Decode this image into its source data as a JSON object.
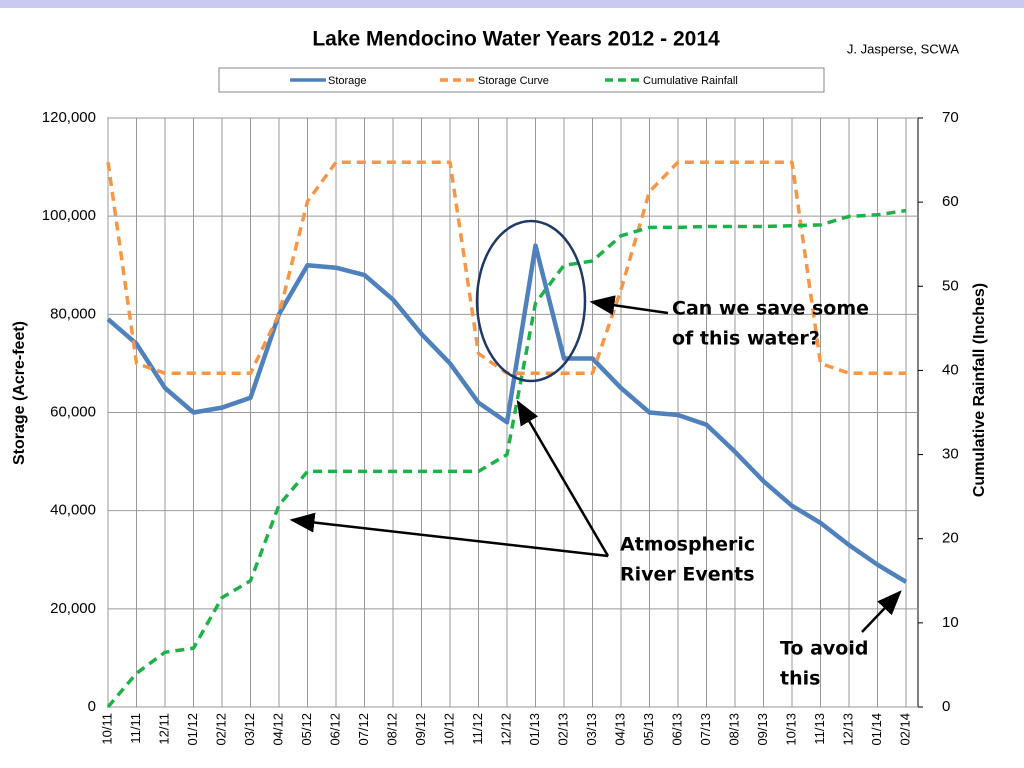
{
  "chart_data": {
    "type": "line",
    "title": "Lake Mendocino Water Years 2012 - 2014",
    "credit": "J. Jasperse, SCWA",
    "y_label": "Storage (Acre-feet)",
    "y2_label": "Cumulative Rainfall (Inches)",
    "categories": [
      "10/11",
      "11/11",
      "12/11",
      "01/12",
      "02/12",
      "03/12",
      "04/12",
      "05/12",
      "06/12",
      "07/12",
      "08/12",
      "09/12",
      "10/12",
      "11/12",
      "12/12",
      "01/13",
      "02/13",
      "03/13",
      "04/13",
      "05/13",
      "06/13",
      "07/13",
      "08/13",
      "09/13",
      "10/13",
      "11/13",
      "12/13",
      "01/14",
      "02/14"
    ],
    "series": [
      {
        "name": "Storage",
        "color": "#4f81bd",
        "dashed": false,
        "values": [
          79000,
          74000,
          65000,
          60000,
          61000,
          63000,
          80000,
          90000,
          89500,
          88000,
          83000,
          76000,
          70000,
          62000,
          58000,
          94000,
          71000,
          71000,
          65000,
          60000,
          59500,
          57500,
          52000,
          46000,
          41000,
          37500,
          33000,
          29000,
          25500
        ]
      },
      {
        "name": "Storage Curve",
        "color": "#f79646",
        "dashed": true,
        "values": [
          111000,
          70000,
          68000,
          68000,
          68000,
          68000,
          80000,
          103000,
          111000,
          111000,
          111000,
          111000,
          111000,
          72000,
          68000,
          68000,
          68000,
          68000,
          85000,
          105000,
          111000,
          111000,
          111000,
          111000,
          111000,
          70000,
          68000,
          68000,
          68000
        ]
      },
      {
        "name": "Cumulative Rainfall",
        "color": "#1fb04a",
        "dashed": true,
        "axis": "y2",
        "values": [
          0,
          4,
          6.5,
          7,
          13,
          15,
          24,
          28,
          28,
          28,
          28,
          28,
          28,
          28,
          30,
          48,
          52.5,
          53,
          56,
          57,
          57,
          57.1,
          57.1,
          57.1,
          57.2,
          57.3,
          58.3,
          58.5,
          59
        ]
      }
    ],
    "ylim": [
      0,
      120000
    ],
    "yticks": [
      {
        "value": 0,
        "label": "0"
      },
      {
        "value": 20000,
        "label": "20,000"
      },
      {
        "value": 40000,
        "label": "40,000"
      },
      {
        "value": 60000,
        "label": "60,000"
      },
      {
        "value": 80000,
        "label": "80,000"
      },
      {
        "value": 100000,
        "label": "100,000"
      },
      {
        "value": 120000,
        "label": "120,000"
      }
    ],
    "y2lim": [
      0,
      70
    ],
    "y2ticks": [
      0,
      10,
      20,
      30,
      40,
      50,
      60,
      70
    ],
    "grid": true,
    "legend": "top",
    "annotations": [
      {
        "lines": [
          "Can we save some",
          "of this water?"
        ],
        "color": "#000000"
      },
      {
        "lines": [
          "Atmospheric",
          "River Events"
        ],
        "color": "#1a8a1a"
      },
      {
        "lines": [
          "To avoid",
          "this"
        ],
        "color": "#000000"
      }
    ]
  }
}
